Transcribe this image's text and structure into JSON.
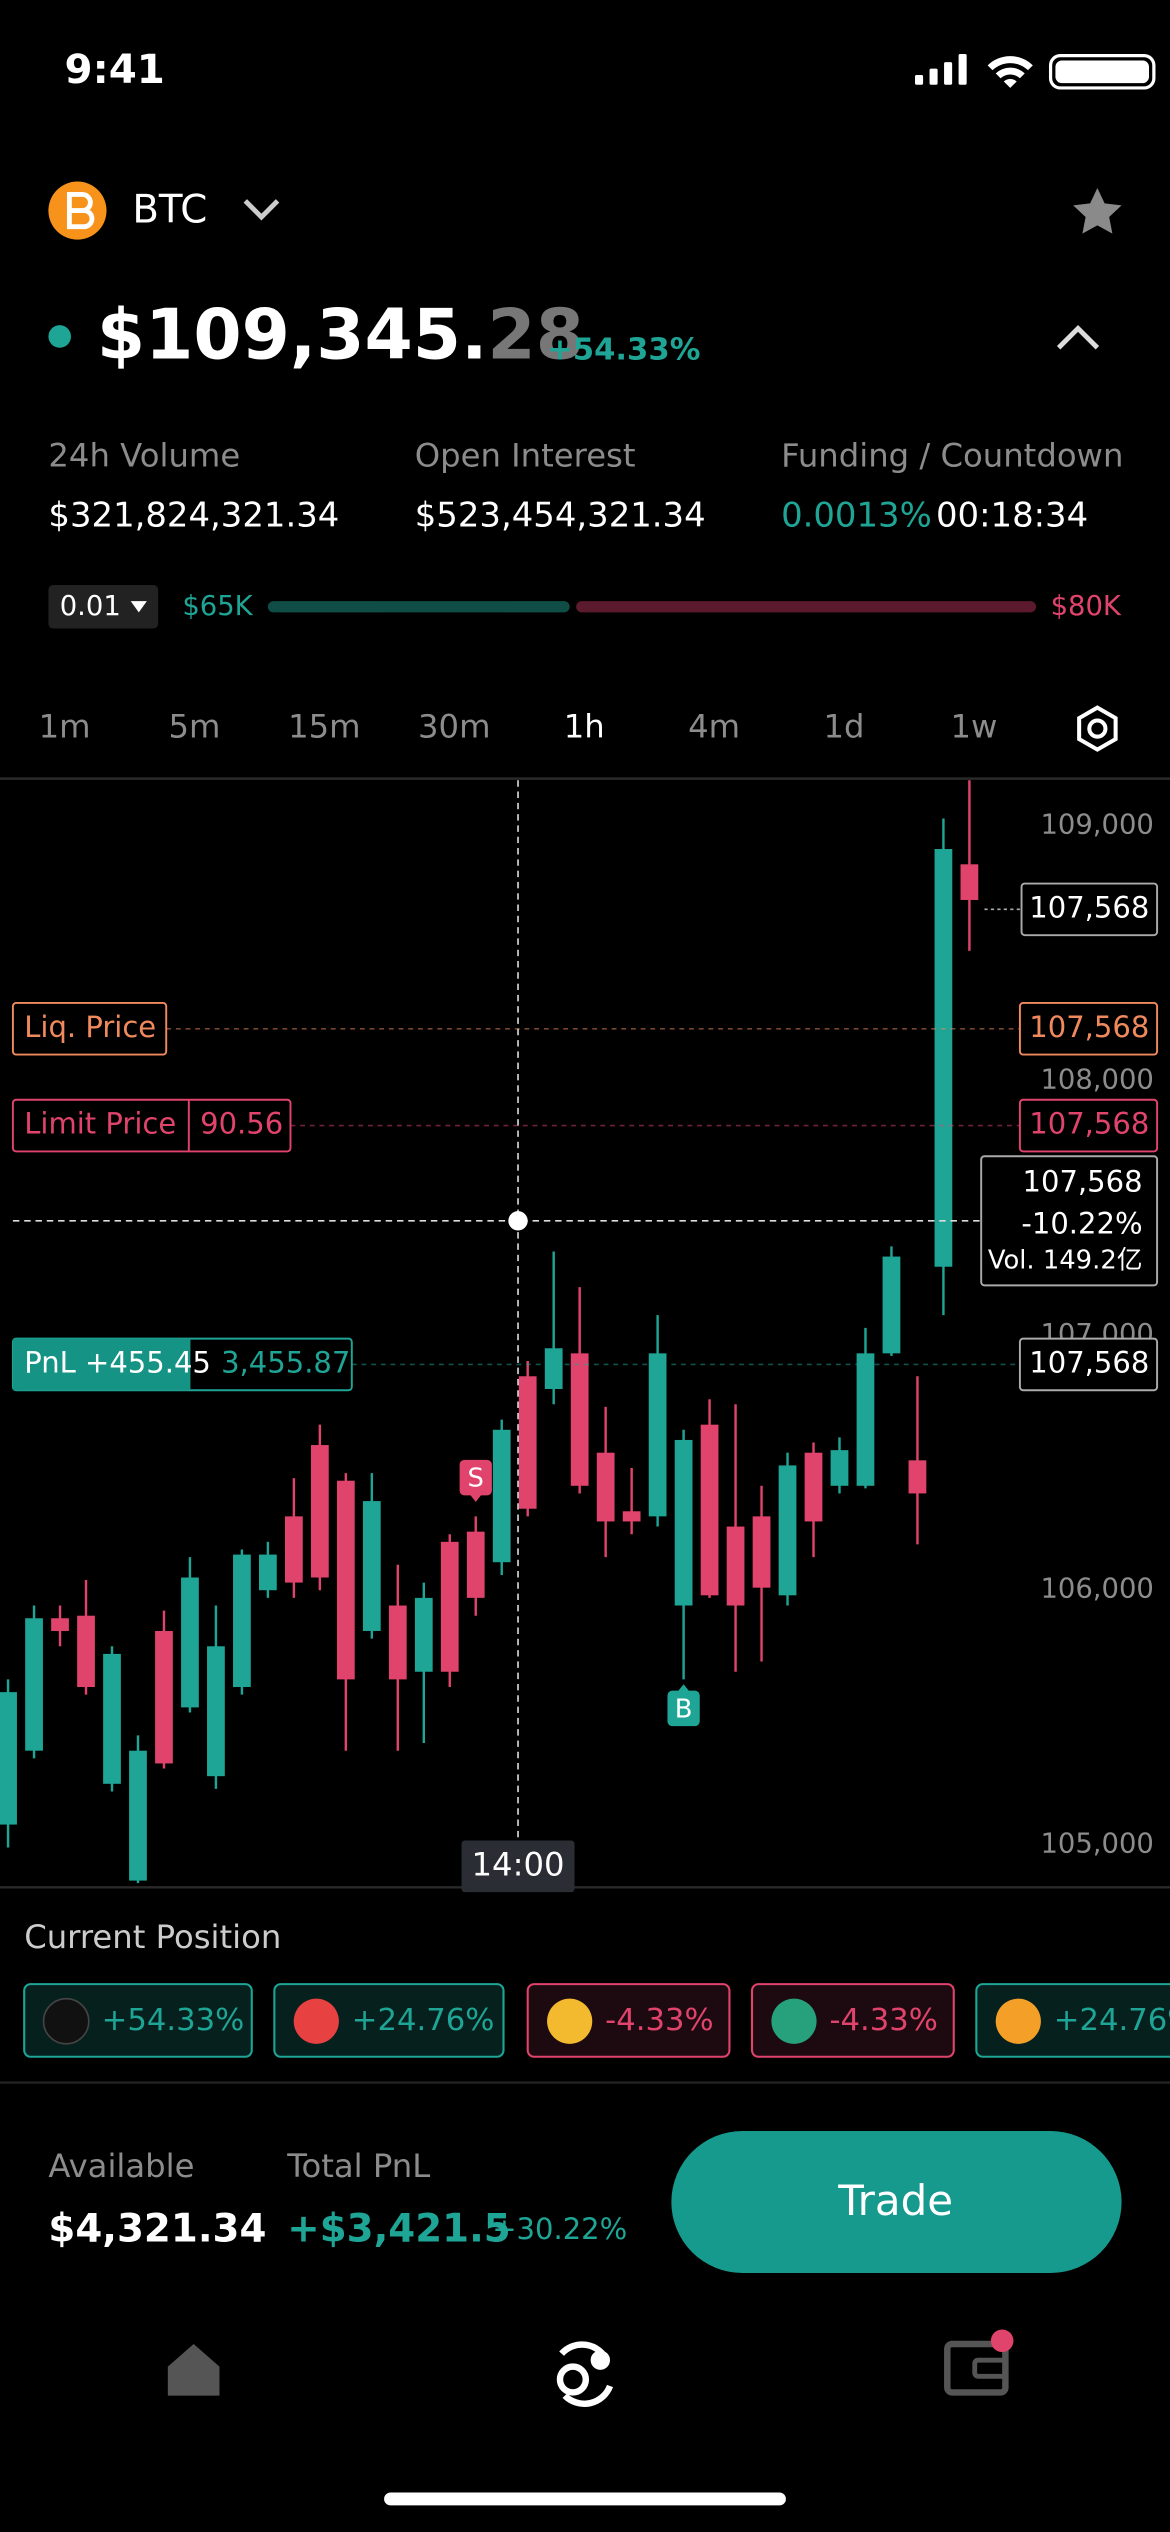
{
  "status_bar": {
    "time": "9:41"
  },
  "header": {
    "symbol": "BTC",
    "price_main": "$109,345.",
    "price_decimals": "28",
    "change": "+54.33%"
  },
  "stats": [
    {
      "label": "24h Volume",
      "value": "$321,824,321.34"
    },
    {
      "label": "Open Interest",
      "value": "$523,454,321.34"
    },
    {
      "label": "Funding / Countdown",
      "value": "0.0013%",
      "value2": "00:18:34"
    }
  ],
  "depth": {
    "step": "0.01",
    "low": "$65K",
    "high": "$80K"
  },
  "timeframes": [
    "1m",
    "5m",
    "15m",
    "30m",
    "1h",
    "4m",
    "1d",
    "1w"
  ],
  "timeframe_active": 4,
  "chart_data": {
    "type": "candlestick",
    "up_color": "#1ea596",
    "down_color": "#e0436b",
    "ylim": [
      104840,
      109180
    ],
    "yticks": [
      {
        "value": 105000,
        "label": "105,000"
      },
      {
        "value": 106000,
        "label": "106,000"
      },
      {
        "value": 107000,
        "label": "107,000"
      },
      {
        "value": 108000,
        "label": "108,000"
      },
      {
        "value": 109000,
        "label": "109,000"
      }
    ],
    "open": [
      105080,
      105370,
      105890,
      105900,
      105240,
      104860,
      105840,
      105540,
      105270,
      105620,
      106000,
      106290,
      106570,
      106430,
      105840,
      105940,
      105680,
      106190,
      106230,
      106110,
      106840,
      106790,
      106930,
      106540,
      106310,
      106290,
      105940,
      106650,
      106250,
      106290,
      105980,
      106540,
      106410,
      106410,
      106930,
      106510,
      107270,
      108850
    ],
    "high": [
      105650,
      105940,
      105940,
      106040,
      105780,
      105430,
      105920,
      106130,
      105940,
      106160,
      106190,
      106440,
      106650,
      106460,
      106460,
      106100,
      106030,
      106220,
      106290,
      106670,
      106900,
      107330,
      107190,
      106720,
      106480,
      107080,
      106630,
      106750,
      106730,
      106410,
      106540,
      106580,
      106600,
      107030,
      107350,
      106840,
      109030,
      109180
    ],
    "low": [
      104990,
      105340,
      105780,
      105590,
      105210,
      104850,
      105300,
      105520,
      105220,
      105590,
      105970,
      105970,
      106000,
      105370,
      105810,
      105370,
      105400,
      105620,
      105900,
      106060,
      106290,
      106730,
      106380,
      106130,
      106220,
      106250,
      105650,
      105970,
      105680,
      105720,
      105940,
      106130,
      106380,
      106400,
      106920,
      106180,
      107080,
      108510
    ],
    "close": [
      105600,
      105890,
      105840,
      105620,
      105750,
      105370,
      105320,
      106050,
      105780,
      106140,
      106140,
      106030,
      106050,
      105650,
      106350,
      105650,
      105970,
      105680,
      105970,
      106630,
      106320,
      106950,
      106410,
      106270,
      106270,
      106930,
      106590,
      105980,
      105940,
      106010,
      106490,
      106270,
      106550,
      106930,
      107310,
      106380,
      108910,
      108710
    ],
    "markers": [
      {
        "label": "S",
        "index": 18
      },
      {
        "label": "B",
        "index": 26
      }
    ]
  },
  "price_lines": {
    "current": "107,568",
    "liq": {
      "label": "Liq. Price",
      "value": "107,568"
    },
    "limit": {
      "label": "Limit Price",
      "qty": "90.56",
      "value": "107,568"
    },
    "pnl": {
      "label": "PnL +455.45",
      "qty": "3,455.87",
      "value": "107,568"
    }
  },
  "crosshair": {
    "time": "14:00",
    "price": "107,568",
    "change": "-10.22%",
    "volume": "Vol. 149.2亿"
  },
  "positions": {
    "title": "Current Position",
    "items": [
      "+54.33%",
      "+24.76%",
      "-4.33%",
      "-4.33%",
      "+24.76%"
    ]
  },
  "footer": {
    "available_label": "Available",
    "available": "$4,321.34",
    "pnl_label": "Total PnL",
    "pnl": "+$3,421.5",
    "pnl_pct": "+30.22%",
    "button": "Trade"
  }
}
